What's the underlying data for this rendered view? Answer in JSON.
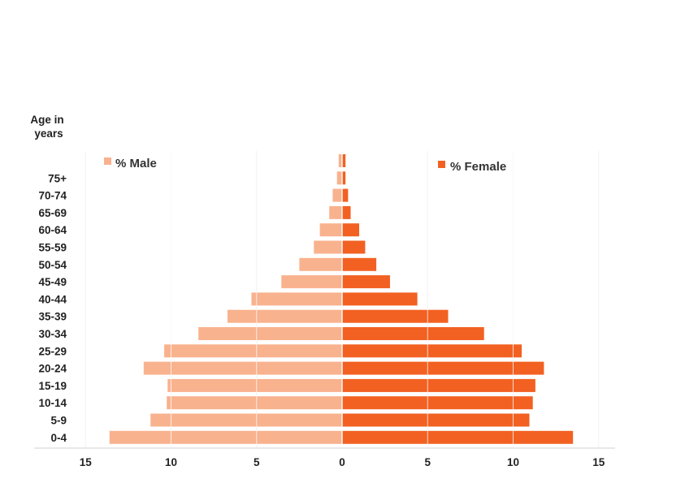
{
  "chart_data": {
    "type": "bar",
    "orientation": "horizontal-population-pyramid",
    "ylabel_line1": "Age in",
    "ylabel_line2": "years",
    "categories": [
      "",
      "75+",
      "70-74",
      "65-69",
      "60-64",
      "55-59",
      "50-54",
      "45-49",
      "40-44",
      "35-39",
      "30-34",
      "25-29",
      "20-24",
      "15-19",
      "10-14",
      "5-9",
      "0-4"
    ],
    "series": [
      {
        "name": "% Male",
        "color": "#F9B28E",
        "values": [
          0.2,
          0.3,
          0.55,
          0.75,
          1.3,
          1.65,
          2.5,
          3.55,
          5.3,
          6.7,
          8.4,
          10.4,
          11.6,
          10.2,
          10.25,
          11.2,
          13.6
        ]
      },
      {
        "name": "% Female",
        "color": "#F26122",
        "values": [
          0.2,
          0.2,
          0.35,
          0.5,
          1.0,
          1.35,
          2.0,
          2.8,
          4.4,
          6.2,
          8.3,
          10.5,
          11.8,
          11.3,
          11.15,
          10.95,
          13.5
        ]
      }
    ],
    "xticks": [
      "15",
      "10",
      "5",
      "0",
      "5",
      "10",
      "15"
    ],
    "xlim": [
      -15,
      15
    ],
    "grid": true,
    "legend_placement": "top, split left/right"
  }
}
